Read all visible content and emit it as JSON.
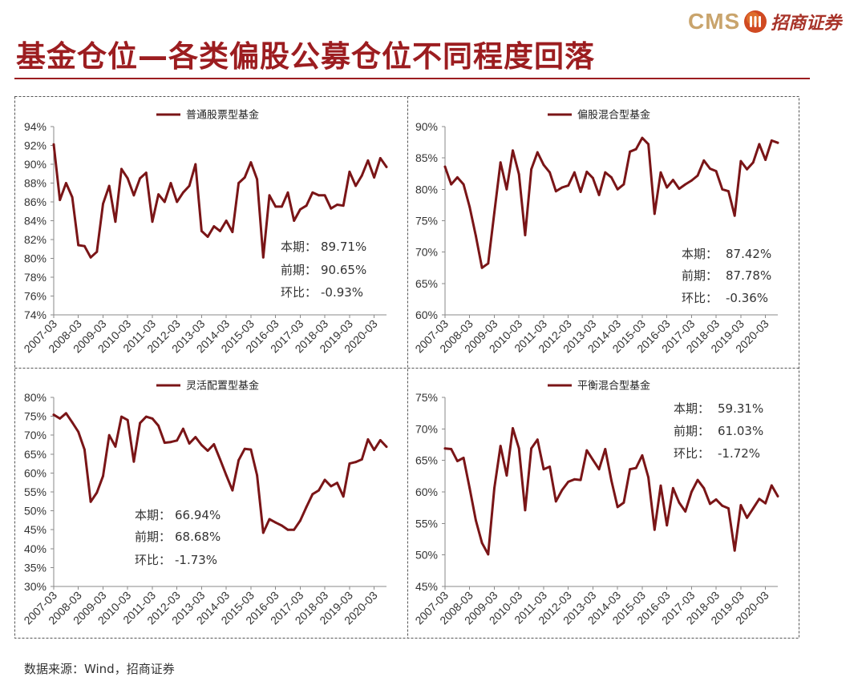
{
  "header": {
    "title": "基金仓位—各类偏股公募仓位不同程度回落",
    "logo_text": "CMS",
    "logo_company": "招商证券"
  },
  "icons": {
    "logo": "cms-logo-icon"
  },
  "footer": {
    "source": "数据来源：Wind，招商证券"
  },
  "colors": {
    "series_line": "#7A1517",
    "title": "#9C1D20",
    "logo_gold": "#C9A46C",
    "logo_red": "#D04A22"
  },
  "chart_data": [
    {
      "type": "line",
      "legend_position": "top-center",
      "grid": false,
      "ylim": [
        74,
        94
      ],
      "yticks": [
        "74%",
        "76%",
        "78%",
        "80%",
        "82%",
        "84%",
        "86%",
        "88%",
        "90%",
        "92%",
        "94%"
      ],
      "xticks": [
        "2007-03",
        "2008-03",
        "2009-03",
        "2010-03",
        "2011-03",
        "2012-03",
        "2013-03",
        "2014-03",
        "2015-03",
        "2016-03",
        "2017-03",
        "2018-03",
        "2019-03",
        "2020-03"
      ],
      "x": [
        "2007-03",
        "2007-06",
        "2007-09",
        "2007-12",
        "2008-03",
        "2008-06",
        "2008-09",
        "2008-12",
        "2009-03",
        "2009-06",
        "2009-09",
        "2009-12",
        "2010-03",
        "2010-06",
        "2010-09",
        "2010-12",
        "2011-03",
        "2011-06",
        "2011-09",
        "2011-12",
        "2012-03",
        "2012-06",
        "2012-09",
        "2012-12",
        "2013-03",
        "2013-06",
        "2013-09",
        "2013-12",
        "2014-03",
        "2014-06",
        "2014-09",
        "2014-12",
        "2015-03",
        "2015-06",
        "2015-09",
        "2015-12",
        "2016-03",
        "2016-06",
        "2016-09",
        "2016-12",
        "2017-03",
        "2017-06",
        "2017-09",
        "2017-12",
        "2018-03",
        "2018-06",
        "2018-09",
        "2018-12",
        "2019-03",
        "2019-06",
        "2019-09",
        "2019-12",
        "2020-03",
        "2020-06",
        "2020-09"
      ],
      "series": [
        {
          "name": "普通股票型基金",
          "values": [
            92.1,
            86.2,
            88.0,
            86.5,
            81.4,
            81.3,
            80.1,
            80.7,
            85.8,
            87.7,
            83.9,
            89.5,
            88.5,
            86.7,
            88.5,
            89.1,
            83.9,
            86.8,
            86.0,
            88.0,
            86.0,
            87.0,
            87.7,
            90.0,
            82.9,
            82.3,
            83.4,
            82.9,
            84.0,
            82.8,
            88.0,
            88.6,
            90.2,
            88.4,
            80.1,
            86.7,
            85.5,
            85.5,
            87.0,
            84.0,
            85.2,
            85.6,
            87.0,
            86.7,
            86.7,
            85.3,
            85.7,
            85.6,
            89.2,
            87.7,
            88.8,
            90.4,
            88.6,
            90.65,
            89.71
          ]
        }
      ],
      "annotations": [
        {
          "label": "本期：",
          "value": "89.71%"
        },
        {
          "label": "前期：",
          "value": "90.65%"
        },
        {
          "label": "环比：",
          "value": "-0.93%"
        }
      ]
    },
    {
      "type": "line",
      "legend_position": "top-center",
      "grid": false,
      "ylim": [
        60,
        90
      ],
      "yticks": [
        "60%",
        "65%",
        "70%",
        "75%",
        "80%",
        "85%",
        "90%"
      ],
      "xticks": [
        "2007-03",
        "2008-03",
        "2009-03",
        "2010-03",
        "2011-03",
        "2012-03",
        "2013-03",
        "2014-03",
        "2015-03",
        "2016-03",
        "2017-03",
        "2018-03",
        "2019-03",
        "2020-03"
      ],
      "x": [
        "2007-03",
        "2007-06",
        "2007-09",
        "2007-12",
        "2008-03",
        "2008-06",
        "2008-09",
        "2008-12",
        "2009-03",
        "2009-06",
        "2009-09",
        "2009-12",
        "2010-03",
        "2010-06",
        "2010-09",
        "2010-12",
        "2011-03",
        "2011-06",
        "2011-09",
        "2011-12",
        "2012-03",
        "2012-06",
        "2012-09",
        "2012-12",
        "2013-03",
        "2013-06",
        "2013-09",
        "2013-12",
        "2014-03",
        "2014-06",
        "2014-09",
        "2014-12",
        "2015-03",
        "2015-06",
        "2015-09",
        "2015-12",
        "2016-03",
        "2016-06",
        "2016-09",
        "2016-12",
        "2017-03",
        "2017-06",
        "2017-09",
        "2017-12",
        "2018-03",
        "2018-06",
        "2018-09",
        "2018-12",
        "2019-03",
        "2019-06",
        "2019-09",
        "2019-12",
        "2020-03",
        "2020-06",
        "2020-09"
      ],
      "series": [
        {
          "name": "偏股混合型基金",
          "values": [
            83.6,
            80.8,
            81.9,
            80.8,
            77.2,
            72.6,
            67.5,
            68.2,
            76.3,
            84.3,
            80.0,
            86.2,
            82.4,
            72.7,
            83.2,
            85.9,
            83.9,
            82.7,
            79.7,
            80.3,
            80.6,
            82.7,
            79.6,
            82.8,
            81.8,
            79.1,
            82.7,
            81.9,
            80.0,
            80.8,
            86.0,
            86.4,
            88.2,
            87.2,
            76.1,
            82.7,
            80.3,
            81.5,
            80.1,
            80.8,
            81.4,
            82.2,
            84.6,
            83.3,
            82.9,
            80.0,
            79.7,
            75.8,
            84.5,
            83.2,
            84.3,
            87.2,
            84.7,
            87.78,
            87.42
          ]
        }
      ],
      "annotations": [
        {
          "label": "本期：",
          "value": "87.42%"
        },
        {
          "label": "前期：",
          "value": "87.78%"
        },
        {
          "label": "环比：",
          "value": "-0.36%"
        }
      ]
    },
    {
      "type": "line",
      "legend_position": "top-center",
      "grid": false,
      "ylim": [
        30,
        80
      ],
      "yticks": [
        "30%",
        "35%",
        "40%",
        "45%",
        "50%",
        "55%",
        "60%",
        "65%",
        "70%",
        "75%",
        "80%"
      ],
      "xticks": [
        "2007-03",
        "2008-03",
        "2009-03",
        "2010-03",
        "2011-03",
        "2012-03",
        "2013-03",
        "2014-03",
        "2015-03",
        "2016-03",
        "2017-03",
        "2018-03",
        "2019-03",
        "2020-03"
      ],
      "x": [
        "2007-03",
        "2007-06",
        "2007-09",
        "2007-12",
        "2008-03",
        "2008-06",
        "2008-09",
        "2008-12",
        "2009-03",
        "2009-06",
        "2009-09",
        "2009-12",
        "2010-03",
        "2010-06",
        "2010-09",
        "2010-12",
        "2011-03",
        "2011-06",
        "2011-09",
        "2011-12",
        "2012-03",
        "2012-06",
        "2012-09",
        "2012-12",
        "2013-03",
        "2013-06",
        "2013-09",
        "2013-12",
        "2014-03",
        "2014-06",
        "2014-09",
        "2014-12",
        "2015-03",
        "2015-06",
        "2015-09",
        "2015-12",
        "2016-03",
        "2016-06",
        "2016-09",
        "2016-12",
        "2017-03",
        "2017-06",
        "2017-09",
        "2017-12",
        "2018-03",
        "2018-06",
        "2018-09",
        "2018-12",
        "2019-03",
        "2019-06",
        "2019-09",
        "2019-12",
        "2020-03",
        "2020-06",
        "2020-09"
      ],
      "series": [
        {
          "name": "灵活配置型基金",
          "values": [
            75.4,
            74.4,
            75.8,
            73.4,
            70.9,
            66.2,
            52.4,
            54.8,
            59.2,
            70.0,
            67.0,
            74.9,
            74.0,
            63.0,
            73.2,
            74.9,
            74.4,
            72.5,
            68.0,
            68.2,
            68.6,
            71.7,
            67.8,
            69.5,
            67.4,
            65.9,
            67.6,
            63.6,
            59.4,
            55.4,
            63.4,
            66.4,
            66.2,
            59.4,
            44.2,
            47.8,
            46.9,
            46.1,
            45.0,
            45.0,
            47.4,
            51.0,
            54.4,
            55.4,
            58.2,
            56.5,
            57.4,
            53.8,
            62.5,
            62.9,
            63.6,
            68.9,
            66.1,
            68.68,
            66.94
          ]
        }
      ],
      "annotations": [
        {
          "label": "本期：",
          "value": "66.94%"
        },
        {
          "label": "前期：",
          "value": "68.68%"
        },
        {
          "label": "环比：",
          "value": "-1.73%"
        }
      ]
    },
    {
      "type": "line",
      "legend_position": "top-center",
      "grid": false,
      "ylim": [
        45,
        75
      ],
      "yticks": [
        "45%",
        "50%",
        "55%",
        "60%",
        "65%",
        "70%",
        "75%"
      ],
      "xticks": [
        "2007-03",
        "2008-03",
        "2009-03",
        "2010-03",
        "2011-03",
        "2012-03",
        "2013-03",
        "2014-03",
        "2015-03",
        "2016-03",
        "2017-03",
        "2018-03",
        "2019-03",
        "2020-03"
      ],
      "x": [
        "2007-03",
        "2007-06",
        "2007-09",
        "2007-12",
        "2008-03",
        "2008-06",
        "2008-09",
        "2008-12",
        "2009-03",
        "2009-06",
        "2009-09",
        "2009-12",
        "2010-03",
        "2010-06",
        "2010-09",
        "2010-12",
        "2011-03",
        "2011-06",
        "2011-09",
        "2011-12",
        "2012-03",
        "2012-06",
        "2012-09",
        "2012-12",
        "2013-03",
        "2013-06",
        "2013-09",
        "2013-12",
        "2014-03",
        "2014-06",
        "2014-09",
        "2014-12",
        "2015-03",
        "2015-06",
        "2015-09",
        "2015-12",
        "2016-03",
        "2016-06",
        "2016-09",
        "2016-12",
        "2017-03",
        "2017-06",
        "2017-09",
        "2017-12",
        "2018-03",
        "2018-06",
        "2018-09",
        "2018-12",
        "2019-03",
        "2019-06",
        "2019-09",
        "2019-12",
        "2020-03",
        "2020-06",
        "2020-09"
      ],
      "series": [
        {
          "name": "平衡混合型基金",
          "values": [
            66.9,
            66.8,
            64.9,
            65.4,
            60.6,
            55.5,
            51.9,
            50.1,
            60.6,
            67.3,
            62.6,
            70.1,
            66.9,
            57.1,
            66.9,
            68.3,
            63.6,
            64.0,
            58.5,
            60.3,
            61.6,
            62.0,
            61.9,
            66.6,
            65.1,
            63.6,
            66.8,
            61.8,
            57.6,
            58.3,
            63.6,
            63.8,
            65.8,
            62.3,
            54.0,
            61.0,
            54.7,
            60.6,
            58.3,
            56.9,
            60.0,
            61.9,
            60.6,
            58.1,
            58.8,
            57.8,
            57.4,
            50.7,
            57.9,
            55.9,
            57.4,
            58.9,
            58.2,
            61.03,
            59.31
          ]
        }
      ],
      "annotations": [
        {
          "label": "本期：",
          "value": "59.31%"
        },
        {
          "label": "前期：",
          "value": "61.03%"
        },
        {
          "label": "环比：",
          "value": "-1.72%"
        }
      ]
    }
  ]
}
